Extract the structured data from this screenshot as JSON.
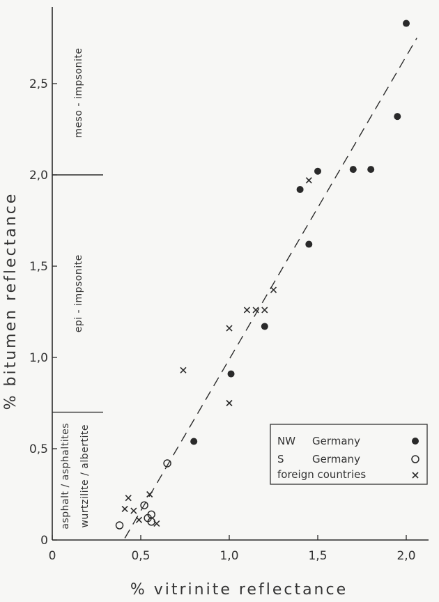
{
  "chart_data": {
    "type": "scatter",
    "title": "",
    "xlabel": "% vitrinite reflectance",
    "ylabel": "% bitumen reflectance",
    "xlim": [
      0,
      2.1
    ],
    "ylim": [
      0,
      2.9
    ],
    "x_ticks": [
      {
        "value": 0,
        "label": "0"
      },
      {
        "value": 0.5,
        "label": "0,5"
      },
      {
        "value": 1.0,
        "label": "1,0"
      },
      {
        "value": 1.5,
        "label": "1,5"
      },
      {
        "value": 2.0,
        "label": "2,0"
      }
    ],
    "y_ticks": [
      {
        "value": 0,
        "label": "0"
      },
      {
        "value": 0.5,
        "label": "0,5"
      },
      {
        "value": 1.0,
        "label": "1,0"
      },
      {
        "value": 1.5,
        "label": "1,5"
      },
      {
        "value": 2.0,
        "label": "2,0"
      },
      {
        "value": 2.5,
        "label": "2,5"
      }
    ],
    "zones": [
      {
        "from": 0,
        "to": 0.7,
        "labels": [
          "asphalt / asphaltites",
          "wurtzilite / albertite"
        ]
      },
      {
        "from": 0.7,
        "to": 2.0,
        "labels": [
          "epi - impsonite"
        ]
      },
      {
        "from": 2.0,
        "to": 2.9,
        "labels": [
          "meso - impsonite"
        ]
      }
    ],
    "trend_line": {
      "style": "dashed",
      "points": [
        [
          0.41,
          0.01
        ],
        [
          2.06,
          2.75
        ]
      ]
    },
    "legend": {
      "position": "bottom-right"
    },
    "series": [
      {
        "name": "NW Germany",
        "marker": "filled-circle",
        "points": [
          [
            0.8,
            0.54
          ],
          [
            1.01,
            0.91
          ],
          [
            1.2,
            1.17
          ],
          [
            1.4,
            1.92
          ],
          [
            1.45,
            1.62
          ],
          [
            1.5,
            2.02
          ],
          [
            1.7,
            2.03
          ],
          [
            1.8,
            2.03
          ],
          [
            1.95,
            2.32
          ],
          [
            2.0,
            2.83
          ]
        ]
      },
      {
        "name": "S Germany",
        "marker": "open-circle",
        "points": [
          [
            0.38,
            0.08
          ],
          [
            0.52,
            0.19
          ],
          [
            0.54,
            0.12
          ],
          [
            0.56,
            0.14
          ],
          [
            0.56,
            0.1
          ],
          [
            0.65,
            0.42
          ]
        ]
      },
      {
        "name": "foreign countries",
        "marker": "cross",
        "points": [
          [
            0.41,
            0.17
          ],
          [
            0.43,
            0.23
          ],
          [
            0.46,
            0.16
          ],
          [
            0.49,
            0.11
          ],
          [
            0.55,
            0.25
          ],
          [
            0.59,
            0.09
          ],
          [
            0.74,
            0.93
          ],
          [
            1.0,
            1.16
          ],
          [
            1.0,
            0.75
          ],
          [
            1.1,
            1.26
          ],
          [
            1.15,
            1.26
          ],
          [
            1.2,
            1.26
          ],
          [
            1.25,
            1.37
          ],
          [
            1.45,
            1.97
          ]
        ]
      }
    ]
  },
  "legend": {
    "rows": [
      {
        "col1": "NW",
        "col2": "Germany"
      },
      {
        "col1": "S",
        "col2": "Germany"
      },
      {
        "col1": "foreign countries",
        "col2": ""
      }
    ]
  }
}
